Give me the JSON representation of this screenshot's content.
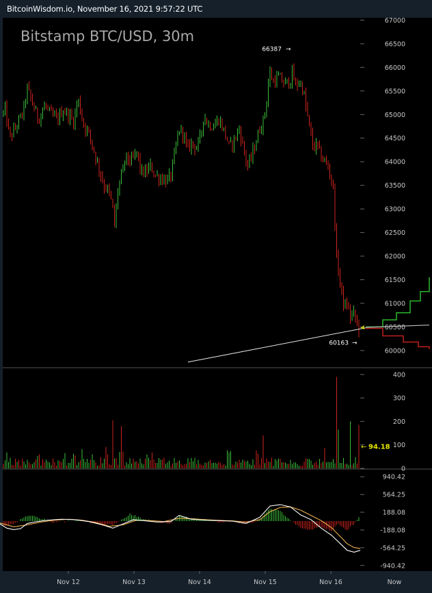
{
  "header": {
    "title": "BitcoinWisdom.io, November 16, 2021 9:57:22 UTC"
  },
  "colors": {
    "panel_bg": "#000000",
    "page_bg": "#15202b",
    "up": "#3cc13c",
    "down": "#d0231c",
    "axis_text": "#c8c8c8",
    "current_price": "#e8e800",
    "macd_line": "#ffffff",
    "signal_line": "#f0b050",
    "bid_depth": "#2db82d",
    "ask_depth": "#c0201a"
  },
  "chart_data": {
    "type": "candlestick",
    "title": "Bitstamp BTC/USD, 30m",
    "interval": "30m",
    "price_axis": {
      "ticks": [
        "67000",
        "66500",
        "66000",
        "65500",
        "65000",
        "64500",
        "64000",
        "63500",
        "63000",
        "62500",
        "62000",
        "61500",
        "61000",
        "60500",
        "60000"
      ],
      "ylim": [
        59650,
        67050
      ]
    },
    "volume_axis": {
      "ticks": [
        "400",
        "300",
        "200",
        "100",
        "0"
      ],
      "ylim": [
        0,
        420
      ]
    },
    "macd_axis": {
      "ticks": [
        "940.42",
        "564.25",
        "188.08",
        "-188.08",
        "-564.25",
        "-940.42"
      ],
      "ylim": [
        -1060,
        1060
      ]
    },
    "x_ticks": [
      "Nov 12",
      "Nov 13",
      "Nov 14",
      "Nov 15",
      "Nov 16",
      "Now"
    ],
    "high_marker": {
      "label": "66387",
      "value": 66387
    },
    "low_marker": {
      "label": "60163",
      "value": 60163
    },
    "current_volume_label": "94.18",
    "price_path": [
      [
        0,
        64900
      ],
      [
        8,
        65100
      ],
      [
        14,
        64500
      ],
      [
        22,
        64700
      ],
      [
        34,
        65050
      ],
      [
        40,
        65550
      ],
      [
        46,
        65300
      ],
      [
        56,
        64900
      ],
      [
        66,
        65200
      ],
      [
        74,
        65000
      ],
      [
        84,
        64900
      ],
      [
        92,
        65100
      ],
      [
        100,
        65000
      ],
      [
        108,
        64850
      ],
      [
        114,
        65350
      ],
      [
        122,
        64800
      ],
      [
        130,
        64600
      ],
      [
        138,
        64200
      ],
      [
        146,
        63800
      ],
      [
        152,
        63500
      ],
      [
        158,
        63400
      ],
      [
        164,
        63100
      ],
      [
        168,
        62600
      ],
      [
        172,
        63400
      ],
      [
        178,
        63700
      ],
      [
        184,
        64100
      ],
      [
        192,
        64000
      ],
      [
        200,
        64200
      ],
      [
        206,
        63800
      ],
      [
        212,
        63750
      ],
      [
        220,
        63900
      ],
      [
        228,
        63700
      ],
      [
        236,
        63650
      ],
      [
        244,
        63600
      ],
      [
        250,
        63700
      ],
      [
        256,
        64200
      ],
      [
        262,
        64700
      ],
      [
        268,
        64600
      ],
      [
        274,
        64250
      ],
      [
        280,
        64400
      ],
      [
        288,
        64300
      ],
      [
        294,
        64550
      ],
      [
        298,
        65000
      ],
      [
        304,
        64800
      ],
      [
        312,
        64750
      ],
      [
        320,
        64900
      ],
      [
        328,
        64650
      ],
      [
        336,
        64300
      ],
      [
        344,
        64500
      ],
      [
        350,
        64700
      ],
      [
        356,
        64300
      ],
      [
        362,
        63900
      ],
      [
        368,
        64100
      ],
      [
        374,
        64400
      ],
      [
        380,
        64700
      ],
      [
        386,
        64900
      ],
      [
        390,
        65300
      ],
      [
        394,
        65900
      ],
      [
        400,
        65700
      ],
      [
        408,
        65800
      ],
      [
        416,
        65650
      ],
      [
        424,
        65700
      ],
      [
        428,
        65900
      ],
      [
        432,
        65600
      ],
      [
        438,
        65700
      ],
      [
        444,
        65500
      ],
      [
        448,
        65100
      ],
      [
        452,
        64800
      ],
      [
        458,
        64300
      ],
      [
        464,
        64350
      ],
      [
        470,
        64100
      ],
      [
        476,
        64000
      ],
      [
        482,
        63800
      ],
      [
        488,
        63400
      ],
      [
        492,
        62000
      ],
      [
        496,
        61600
      ],
      [
        500,
        61200
      ],
      [
        504,
        60900
      ],
      [
        508,
        61000
      ],
      [
        512,
        60700
      ],
      [
        516,
        60800
      ],
      [
        520,
        60700
      ],
      [
        524,
        60450
      ],
      [
        527,
        60500
      ]
    ],
    "volume_peaks": [
      {
        "x": 492,
        "value": 390
      },
      {
        "x": 165,
        "value": 205
      },
      {
        "x": 178,
        "value": 180
      },
      {
        "x": 496,
        "value": 165
      },
      {
        "x": 512,
        "value": 200
      },
      {
        "x": 524,
        "value": 185
      },
      {
        "x": 386,
        "value": 140
      }
    ],
    "macd_histogram": [
      [
        0,
        -120
      ],
      [
        20,
        -60
      ],
      [
        40,
        120
      ],
      [
        60,
        60
      ],
      [
        80,
        -40
      ],
      [
        110,
        20
      ],
      [
        130,
        -20
      ],
      [
        150,
        -90
      ],
      [
        170,
        -60
      ],
      [
        190,
        150
      ],
      [
        210,
        40
      ],
      [
        230,
        -20
      ],
      [
        250,
        -40
      ],
      [
        262,
        110
      ],
      [
        280,
        60
      ],
      [
        300,
        50
      ],
      [
        320,
        -20
      ],
      [
        340,
        0
      ],
      [
        360,
        -60
      ],
      [
        380,
        30
      ],
      [
        395,
        260
      ],
      [
        410,
        210
      ],
      [
        425,
        30
      ],
      [
        440,
        -160
      ],
      [
        455,
        -190
      ],
      [
        470,
        -120
      ],
      [
        485,
        -200
      ],
      [
        495,
        -60
      ],
      [
        508,
        -190
      ],
      [
        518,
        -60
      ],
      [
        527,
        100
      ]
    ],
    "macd_line": [
      [
        0,
        -60
      ],
      [
        10,
        -150
      ],
      [
        20,
        -180
      ],
      [
        30,
        -160
      ],
      [
        40,
        -50
      ],
      [
        50,
        -20
      ],
      [
        70,
        20
      ],
      [
        90,
        40
      ],
      [
        110,
        30
      ],
      [
        130,
        -10
      ],
      [
        150,
        -80
      ],
      [
        165,
        -150
      ],
      [
        180,
        -60
      ],
      [
        195,
        30
      ],
      [
        210,
        10
      ],
      [
        230,
        -20
      ],
      [
        250,
        -10
      ],
      [
        262,
        120
      ],
      [
        280,
        40
      ],
      [
        300,
        20
      ],
      [
        320,
        10
      ],
      [
        340,
        0
      ],
      [
        360,
        -50
      ],
      [
        380,
        80
      ],
      [
        395,
        320
      ],
      [
        410,
        350
      ],
      [
        425,
        300
      ],
      [
        440,
        130
      ],
      [
        455,
        30
      ],
      [
        470,
        -150
      ],
      [
        485,
        -300
      ],
      [
        498,
        -480
      ],
      [
        508,
        -620
      ],
      [
        518,
        -660
      ],
      [
        527,
        -620
      ]
    ],
    "signal_line": [
      [
        0,
        -40
      ],
      [
        20,
        -120
      ],
      [
        40,
        -80
      ],
      [
        60,
        -20
      ],
      [
        80,
        20
      ],
      [
        100,
        40
      ],
      [
        120,
        20
      ],
      [
        140,
        -30
      ],
      [
        160,
        -110
      ],
      [
        180,
        -80
      ],
      [
        200,
        20
      ],
      [
        220,
        10
      ],
      [
        240,
        -10
      ],
      [
        262,
        60
      ],
      [
        280,
        50
      ],
      [
        300,
        30
      ],
      [
        320,
        15
      ],
      [
        340,
        5
      ],
      [
        360,
        -20
      ],
      [
        380,
        30
      ],
      [
        395,
        200
      ],
      [
        410,
        290
      ],
      [
        425,
        300
      ],
      [
        440,
        230
      ],
      [
        455,
        120
      ],
      [
        470,
        10
      ],
      [
        485,
        -140
      ],
      [
        498,
        -330
      ],
      [
        508,
        -480
      ],
      [
        518,
        -560
      ],
      [
        527,
        -580
      ]
    ],
    "trend_line": {
      "x1": 275,
      "y1": 59755,
      "x2": 535,
      "y2": 60480
    },
    "depth_bid": [
      [
        535,
        60500
      ],
      [
        560,
        60650
      ],
      [
        580,
        60800
      ],
      [
        600,
        61050
      ],
      [
        615,
        61250
      ],
      [
        628,
        61550
      ]
    ],
    "depth_ask": [
      [
        535,
        60470
      ],
      [
        560,
        60310
      ],
      [
        590,
        60180
      ],
      [
        612,
        60080
      ],
      [
        628,
        60030
      ]
    ],
    "depth_mid": [
      [
        535,
        60490
      ],
      [
        628,
        60540
      ]
    ]
  }
}
